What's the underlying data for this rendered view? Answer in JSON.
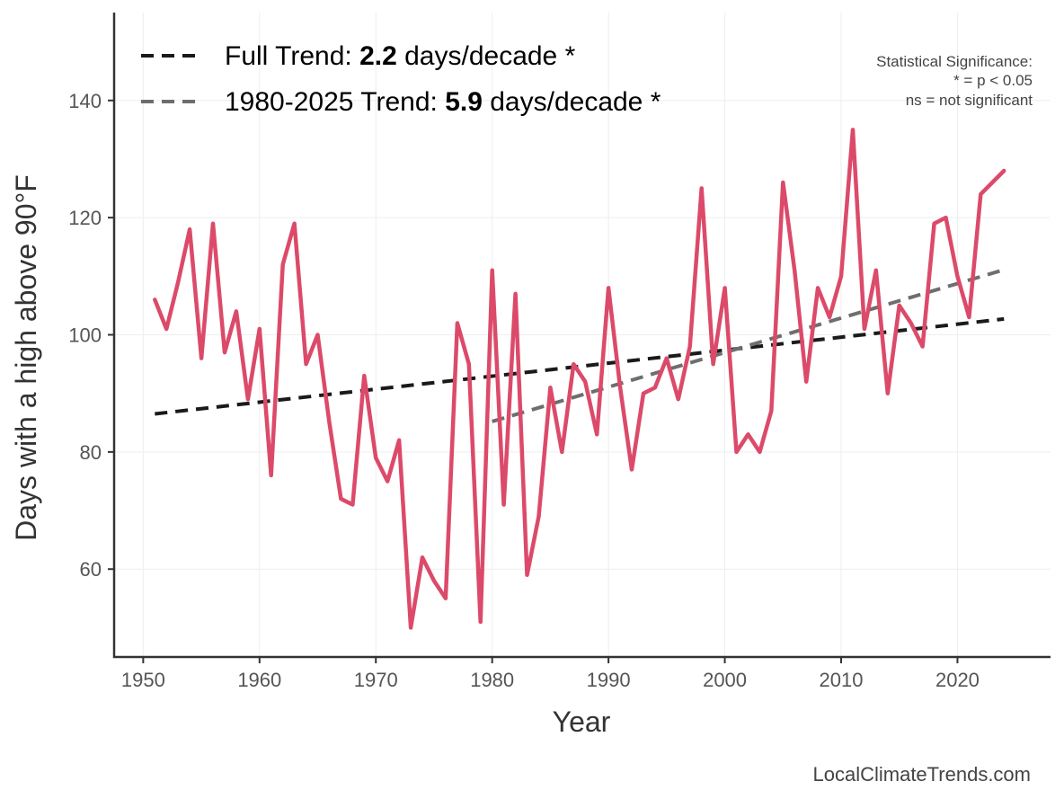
{
  "chart_data": {
    "type": "line",
    "xlabel": "Year",
    "ylabel": "Days with a high above 90°F",
    "xlim": [
      1947.5,
      2028
    ],
    "ylim": [
      45,
      155
    ],
    "x_ticks": [
      1950,
      1960,
      1970,
      1980,
      1990,
      2000,
      2010,
      2020
    ],
    "y_ticks": [
      60,
      80,
      100,
      120,
      140
    ],
    "grid": true,
    "series": [
      {
        "name": "Days with a high above 90°F",
        "color": "#dc4a6a",
        "x": [
          1951,
          1952,
          1953,
          1954,
          1955,
          1956,
          1957,
          1958,
          1959,
          1960,
          1961,
          1962,
          1963,
          1964,
          1965,
          1966,
          1967,
          1968,
          1969,
          1970,
          1971,
          1972,
          1973,
          1974,
          1975,
          1976,
          1977,
          1978,
          1979,
          1980,
          1981,
          1982,
          1983,
          1984,
          1985,
          1986,
          1987,
          1988,
          1989,
          1990,
          1991,
          1992,
          1993,
          1994,
          1995,
          1996,
          1997,
          1998,
          1999,
          2000,
          2001,
          2002,
          2003,
          2004,
          2005,
          2006,
          2007,
          2008,
          2009,
          2010,
          2011,
          2012,
          2013,
          2014,
          2015,
          2016,
          2017,
          2018,
          2019,
          2020,
          2021,
          2022,
          2023,
          2024
        ],
        "values": [
          106,
          101,
          109,
          118,
          96,
          119,
          97,
          104,
          89,
          101,
          76,
          112,
          119,
          95,
          100,
          85,
          72,
          71,
          93,
          79,
          75,
          82,
          50,
          62,
          58,
          55,
          102,
          95,
          51,
          111,
          71,
          107,
          59,
          69,
          91,
          80,
          95,
          92,
          83,
          108,
          91,
          77,
          90,
          91,
          96,
          89,
          98,
          125,
          95,
          108,
          80,
          83,
          80,
          87,
          126,
          111,
          92,
          108,
          103,
          110,
          135,
          101,
          111,
          90,
          105,
          102,
          98,
          119,
          120,
          110,
          103,
          124,
          126,
          128
        ]
      }
    ],
    "trends": [
      {
        "name": "Full Trend",
        "color": "#1a1a1a",
        "x": [
          1951,
          2024
        ],
        "y": [
          86.5,
          102.7
        ],
        "legend_prefix": "Full Trend: ",
        "legend_value": "2.2",
        "legend_suffix": " days/decade *"
      },
      {
        "name": "1980-2025 Trend",
        "color": "#6e6e6e",
        "x": [
          1980,
          2024
        ],
        "y": [
          85.2,
          111.1
        ],
        "legend_prefix": "1980-2025 Trend: ",
        "legend_value": "5.9",
        "legend_suffix": " days/decade *"
      }
    ],
    "annotation": [
      "Statistical Significance:",
      "* = p < 0.05",
      "ns = not significant"
    ],
    "source": "LocalClimateTrends.com"
  }
}
